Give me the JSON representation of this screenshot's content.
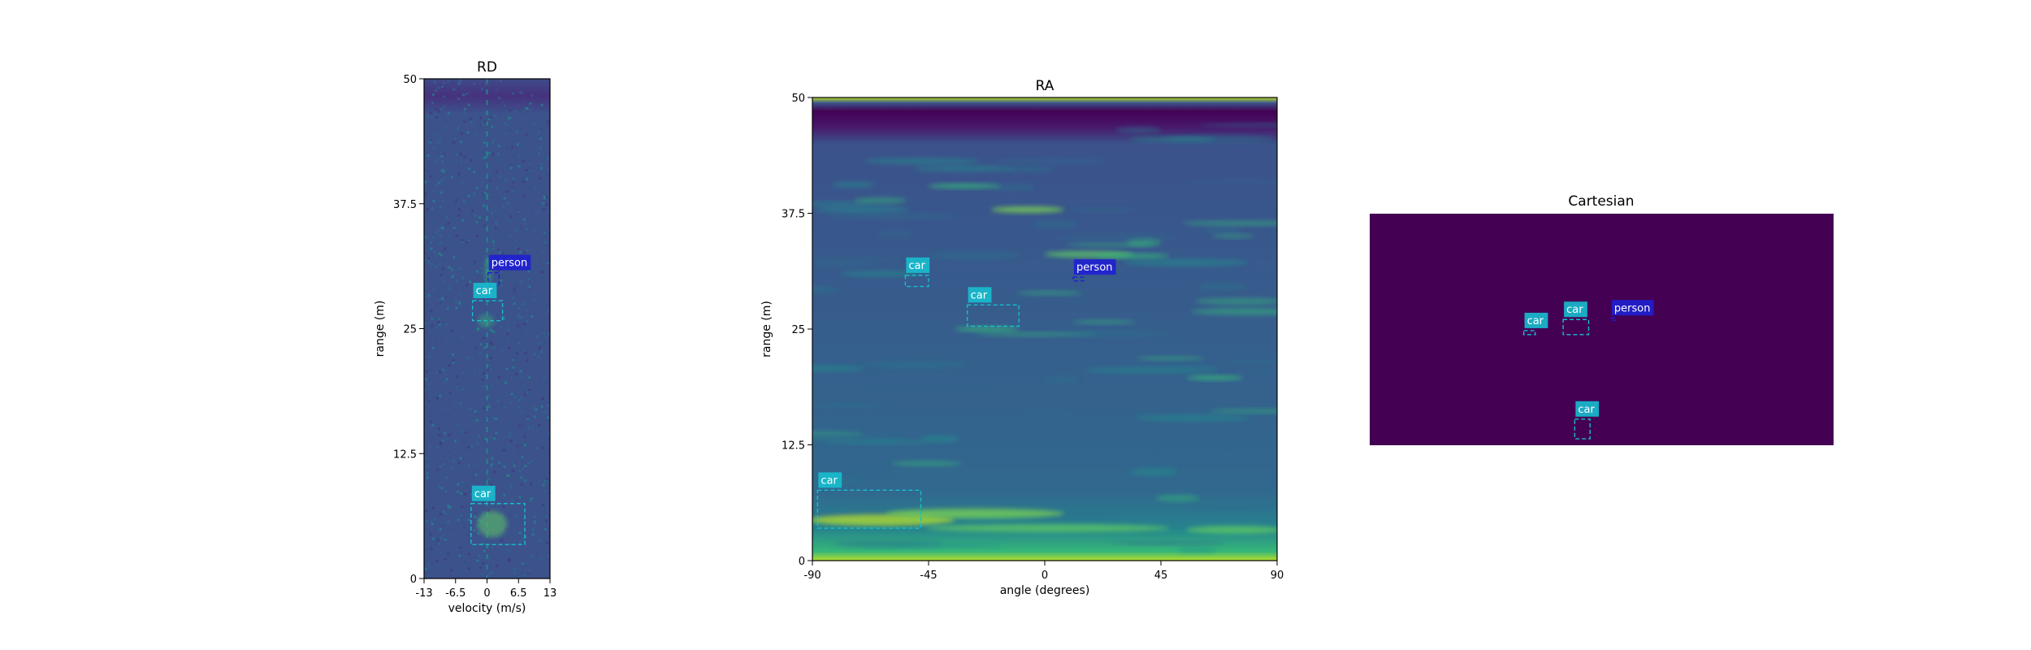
{
  "colors": {
    "background": "#ffffff",
    "axis": "#000000",
    "car_box": "#17becf",
    "person_box": "#1f1fd1",
    "label_text": "#ffffff",
    "cartesian_bg": "#440154",
    "viridis_low": "#440154",
    "viridis_mid": "#3b528b",
    "viridis_high": "#fde725"
  },
  "chart_data": [
    {
      "type": "heatmap",
      "title": "RD",
      "xlabel": "velocity (m/s)",
      "ylabel": "range (m)",
      "xlim": [
        -13,
        13
      ],
      "ylim": [
        0,
        50
      ],
      "xticks": [
        "-13",
        "-6.5",
        "0",
        "6.5",
        "13"
      ],
      "xtick_values": [
        -13,
        -6.5,
        0,
        6.5,
        13
      ],
      "yticks": [
        "0",
        "12.5",
        "25",
        "37.5",
        "50"
      ],
      "ytick_values": [
        0,
        12.5,
        25,
        37.5,
        50
      ],
      "grid": false,
      "colormap": "viridis",
      "boxes": [
        {
          "label": "person",
          "class": "person",
          "x0": 0.2,
          "x1": 2.5,
          "y0": 29.3,
          "y1": 30.6
        },
        {
          "label": "car",
          "class": "car",
          "x0": -3.0,
          "x1": 3.2,
          "y0": 25.8,
          "y1": 27.8
        },
        {
          "label": "car",
          "class": "car",
          "x0": -3.3,
          "x1": 7.8,
          "y0": 3.4,
          "y1": 7.5
        }
      ]
    },
    {
      "type": "heatmap",
      "title": "RA",
      "xlabel": "angle (degrees)",
      "ylabel": "range (m)",
      "xlim": [
        -90,
        90
      ],
      "ylim": [
        0,
        50
      ],
      "xticks": [
        "-90",
        "-45",
        "0",
        "45",
        "90"
      ],
      "xtick_values": [
        -90,
        -45,
        0,
        45,
        90
      ],
      "yticks": [
        "0",
        "12.5",
        "25",
        "37.5",
        "50"
      ],
      "ytick_values": [
        0,
        12.5,
        25,
        37.5,
        50
      ],
      "grid": false,
      "colormap": "viridis",
      "boxes": [
        {
          "label": "car",
          "class": "car",
          "x0": -54,
          "x1": -45,
          "y0": 29.6,
          "y1": 30.8
        },
        {
          "label": "person",
          "class": "person",
          "x0": 11,
          "x1": 15,
          "y0": 30.2,
          "y1": 30.6
        },
        {
          "label": "car",
          "class": "car",
          "x0": -30,
          "x1": -10,
          "y0": 25.3,
          "y1": 27.6
        },
        {
          "label": "car",
          "class": "car",
          "x0": -88,
          "x1": -48,
          "y0": 3.5,
          "y1": 7.6
        }
      ]
    },
    {
      "type": "heatmap",
      "title": "Cartesian",
      "xlabel": "",
      "ylabel": "",
      "grid": false,
      "colormap": "viridis",
      "boxes": [
        {
          "label": "car",
          "class": "car",
          "u0": 0.332,
          "u1": 0.357,
          "v0": 0.505,
          "v1": 0.522
        },
        {
          "label": "car",
          "class": "car",
          "u0": 0.417,
          "u1": 0.472,
          "v0": 0.457,
          "v1": 0.522
        },
        {
          "label": "person",
          "class": "person",
          "u0": 0.52,
          "u1": 0.53,
          "v0": 0.45,
          "v1": 0.46
        },
        {
          "label": "car",
          "class": "car",
          "u0": 0.442,
          "u1": 0.475,
          "v0": 0.887,
          "v1": 0.972
        }
      ]
    }
  ]
}
